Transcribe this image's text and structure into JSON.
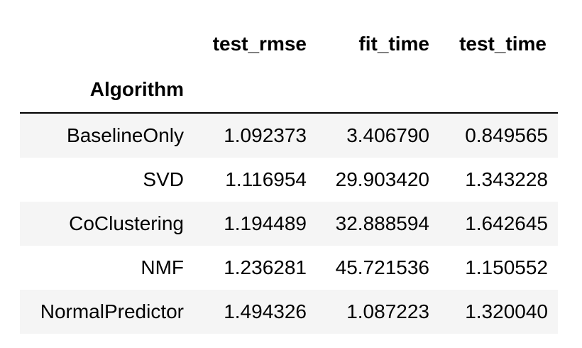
{
  "table": {
    "columns": [
      "test_rmse",
      "fit_time",
      "test_time"
    ],
    "index_name": "Algorithm",
    "rows": [
      {
        "index": "BaselineOnly",
        "values": [
          "1.092373",
          "3.406790",
          "0.849565"
        ]
      },
      {
        "index": "SVD",
        "values": [
          "1.116954",
          "29.903420",
          "1.343228"
        ]
      },
      {
        "index": "CoClustering",
        "values": [
          "1.194489",
          "32.888594",
          "1.642645"
        ]
      },
      {
        "index": "NMF",
        "values": [
          "1.236281",
          "45.721536",
          "1.150552"
        ]
      },
      {
        "index": "NormalPredictor",
        "values": [
          "1.494326",
          "1.087223",
          "1.320040"
        ]
      }
    ]
  },
  "colors": {
    "stripe": "#f5f5f5",
    "background": "#ffffff",
    "rule": "#000000"
  }
}
